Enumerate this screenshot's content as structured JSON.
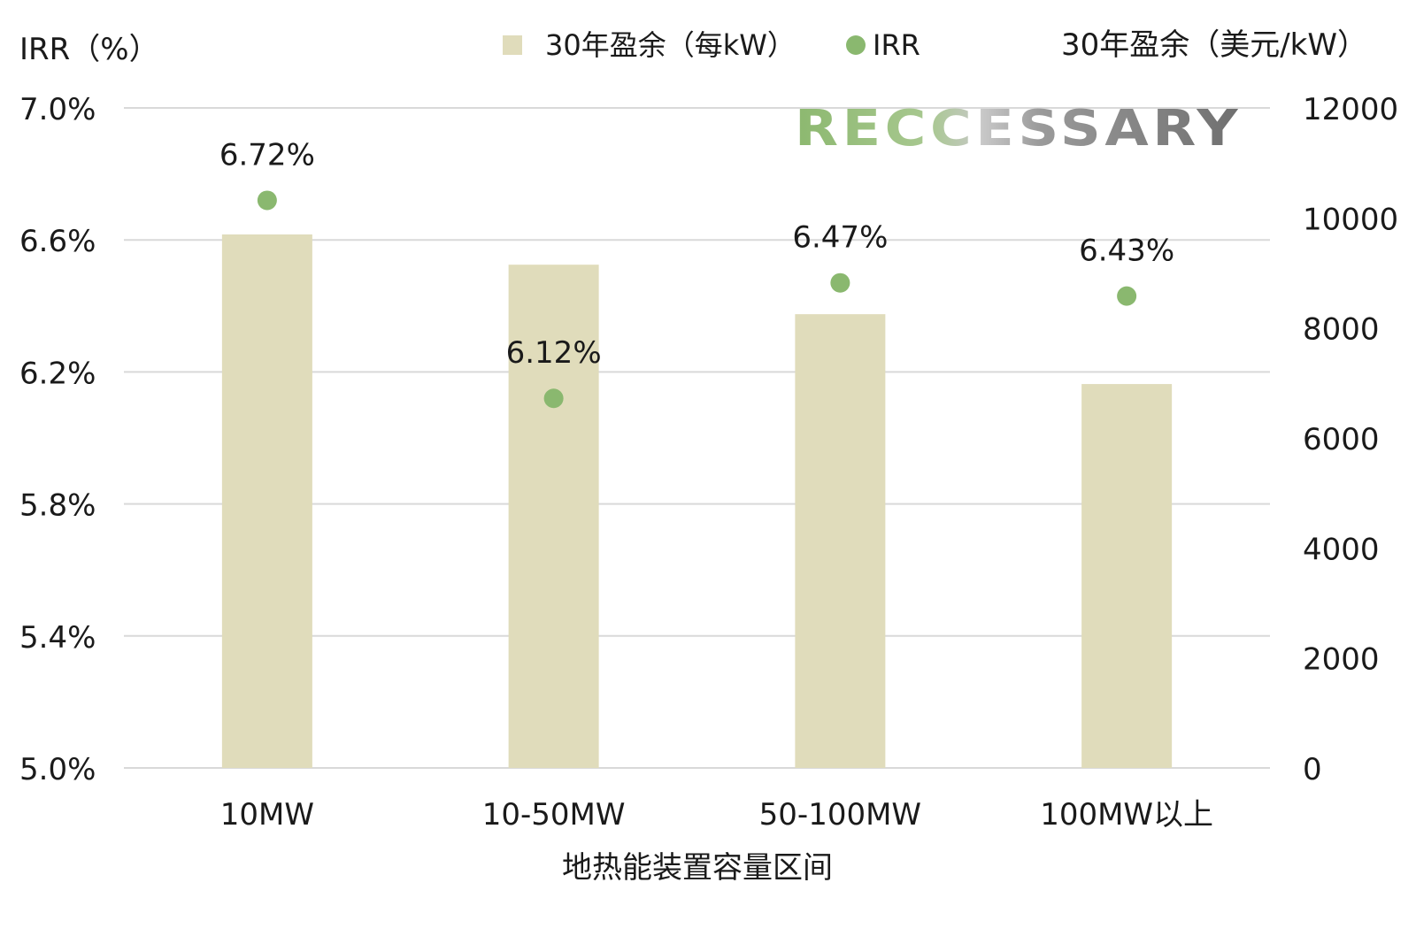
{
  "chart_data": {
    "type": "bar",
    "xlabel": "地热能装置容量区间",
    "ylabel_left": "IRR（%）",
    "ylabel_right": "30年盈余（美元/kW）",
    "categories": [
      "10MW",
      "10-50MW",
      "50-100MW",
      "100MW以上"
    ],
    "series": [
      {
        "name": "30年盈余（每kW）",
        "kind": "bar",
        "axis": "right",
        "values": [
          9700,
          9150,
          8250,
          6980
        ]
      },
      {
        "name": "IRR",
        "kind": "scatter",
        "axis": "left",
        "values": [
          6.72,
          6.12,
          6.47,
          6.43
        ],
        "labels": [
          "6.72%",
          "6.12%",
          "6.47%",
          "6.43%"
        ]
      }
    ],
    "ylim_left": [
      5.0,
      7.0
    ],
    "yticks_left": [
      "5.0%",
      "5.4%",
      "5.8%",
      "6.2%",
      "6.6%",
      "7.0%"
    ],
    "ylim_right": [
      0,
      12000
    ],
    "yticks_right": [
      "0",
      "2000",
      "4000",
      "6000",
      "8000",
      "10000",
      "12000"
    ],
    "grid": true,
    "legend_position": "top",
    "colors": {
      "bar": "#e0dcbb",
      "dot": "#8ab86f",
      "grid": "#d9d9d9"
    }
  },
  "watermark": {
    "text": "RECCESSARY"
  }
}
